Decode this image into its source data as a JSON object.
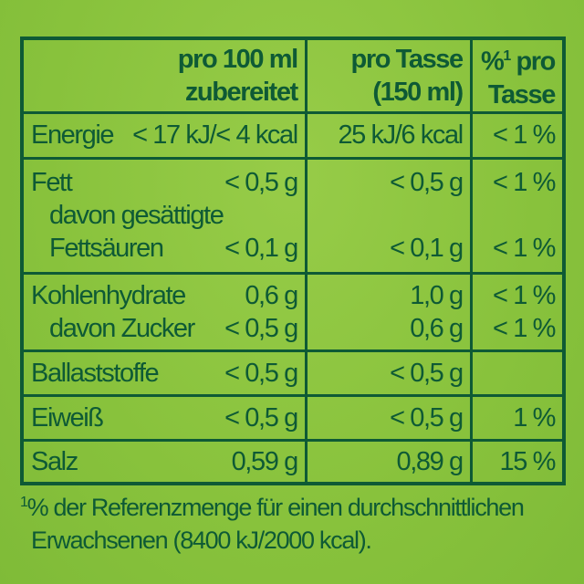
{
  "header": {
    "col1": [
      "pro 100 ml",
      "zubereitet"
    ],
    "col2": [
      "pro Tasse",
      "(150 ml)"
    ],
    "col3_sup": "%",
    "col3_mark": "1",
    "col3": [
      " pro",
      "Tasse"
    ]
  },
  "rows": {
    "energie": {
      "label": "Energie",
      "per100": "< 17 kJ/< 4 kcal",
      "perCup": "25 kJ/6 kcal",
      "pct": "< 1 %"
    },
    "fett": {
      "label": "Fett",
      "per100": "< 0,5 g",
      "perCup": "< 0,5 g",
      "pct": "< 1 %"
    },
    "gesaettigt": {
      "label1": "davon gesättigte",
      "label2": "Fettsäuren",
      "per100": "< 0,1 g",
      "perCup": "< 0,1 g",
      "pct": "< 1 %"
    },
    "kohlenhydrate": {
      "label": "Kohlenhydrate",
      "per100": "0,6 g",
      "perCup": "1,0 g",
      "pct": "< 1 %"
    },
    "zucker": {
      "label": "davon Zucker",
      "per100": "< 0,5 g",
      "perCup": "0,6 g",
      "pct": "< 1 %"
    },
    "ballaststoffe": {
      "label": "Ballaststoffe",
      "per100": "< 0,5 g",
      "perCup": "< 0,5 g",
      "pct": ""
    },
    "eiweiss": {
      "label": "Eiweiß",
      "per100": "< 0,5 g",
      "perCup": "< 0,5 g",
      "pct": "1 %"
    },
    "salz": {
      "label": "Salz",
      "per100": "0,59 g",
      "perCup": "0,89 g",
      "pct": "15 %"
    }
  },
  "footnote": {
    "mark": "1",
    "line1": "% der Referenzmenge für einen durchschnittlichen",
    "line2": "Erwachsenen (8400 kJ/2000 kcal)."
  },
  "colors": {
    "background": "#8dc63f",
    "text": "#0e5a35"
  }
}
